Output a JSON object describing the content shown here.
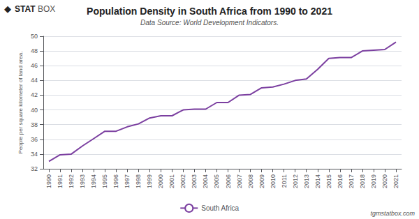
{
  "chart_data": {
    "type": "line",
    "title": "Population Density in South Africa from 1990 to 2021",
    "subtitle": "Data Source: World Development Indicators.",
    "y_label": "People per square kilometer of land area.",
    "annotations": [
      "◆",
      "STAT",
      "BOX",
      "tgmstatbox.com"
    ],
    "x": [
      1990,
      1991,
      1992,
      1993,
      1994,
      1995,
      1996,
      1997,
      1998,
      1999,
      2000,
      2001,
      2002,
      2003,
      2004,
      2005,
      2006,
      2007,
      2008,
      2009,
      2010,
      2011,
      2012,
      2013,
      2014,
      2015,
      2016,
      2017,
      2018,
      2019,
      2020,
      2021
    ],
    "series": [
      {
        "name": "South Africa",
        "color": "#7b3fa0",
        "values": [
          33.0,
          33.9,
          34.0,
          35.1,
          36.1,
          37.1,
          37.1,
          37.7,
          38.1,
          38.9,
          39.2,
          39.2,
          40.0,
          40.1,
          40.1,
          41.0,
          41.0,
          42.0,
          42.1,
          43.0,
          43.1,
          43.5,
          44.0,
          44.2,
          45.5,
          47.0,
          47.1,
          47.1,
          48.0,
          48.1,
          48.2,
          49.2
        ]
      }
    ],
    "xlim": [
      1989.5,
      2021.5
    ],
    "xticks": [
      1990,
      1991,
      1992,
      1993,
      1994,
      1995,
      1996,
      1997,
      1998,
      1999,
      2000,
      2001,
      2002,
      2003,
      2004,
      2005,
      2006,
      2007,
      2008,
      2009,
      2010,
      2011,
      2012,
      2013,
      2014,
      2015,
      2016,
      2017,
      2018,
      2019,
      2020,
      2021
    ],
    "ylim": [
      32,
      50
    ],
    "yticks": [
      32,
      34,
      36,
      38,
      40,
      42,
      44,
      46,
      48,
      50
    ],
    "grid": true,
    "legend": "bottom"
  }
}
